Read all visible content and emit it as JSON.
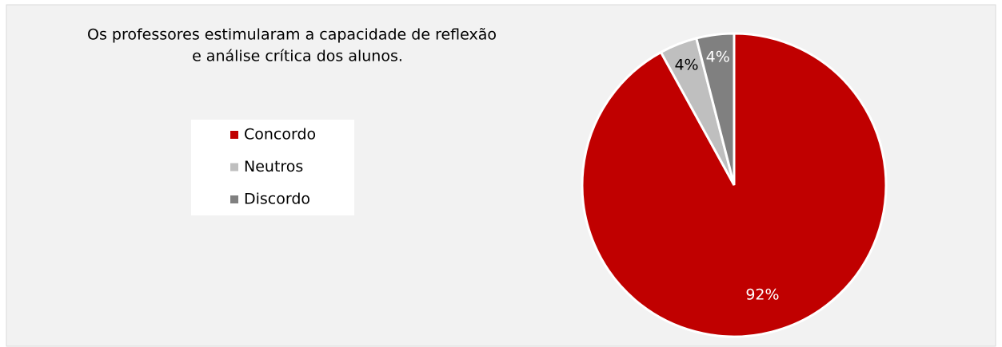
{
  "chart_data": {
    "type": "pie",
    "title": [
      "Os professores estimularam a capacidade de reflexão",
      "e análise crítica dos alunos."
    ],
    "categories": [
      "Concordo",
      "Neutros",
      "Discordo"
    ],
    "values": [
      92,
      4,
      4
    ],
    "value_labels": [
      "92%",
      "4%",
      "4%"
    ],
    "colors": [
      "#c00000",
      "#bfbfbf",
      "#808080"
    ],
    "legend": "left"
  }
}
